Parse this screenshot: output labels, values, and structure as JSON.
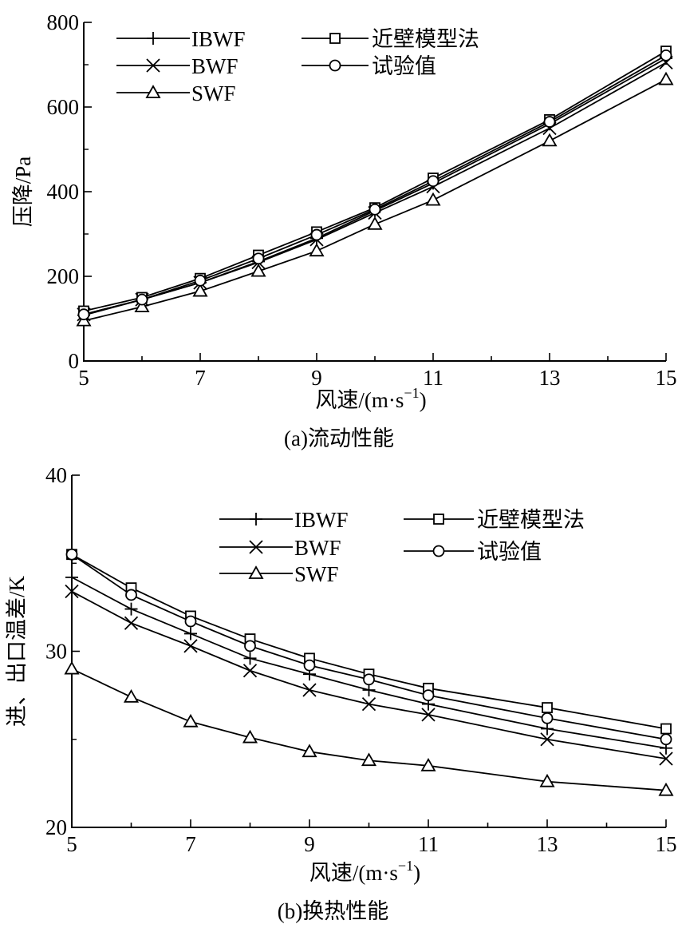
{
  "chart_data": [
    {
      "type": "line",
      "caption": "(a)流动性能",
      "xlabel": "风速/(m·s",
      "xlabel_sup": "−1",
      "xlabel_close": ")",
      "ylabel": "压降/Pa",
      "xlim": [
        5,
        15
      ],
      "ylim": [
        0,
        800
      ],
      "xticks": [
        5,
        7,
        9,
        11,
        13,
        15
      ],
      "xtick_labels": [
        "5",
        "7",
        "9",
        "11",
        "13",
        "15"
      ],
      "yticks": [
        0,
        200,
        400,
        600,
        800
      ],
      "ytick_labels": [
        "0",
        "200",
        "400",
        "600",
        "800"
      ],
      "grid": false,
      "legend_position": "top-left",
      "x": [
        5,
        6,
        7,
        8,
        9,
        10,
        11,
        13,
        15
      ],
      "series": [
        {
          "name": "IBWF",
          "marker": "plus",
          "values": [
            108,
            145,
            185,
            235,
            290,
            355,
            420,
            560,
            715
          ]
        },
        {
          "name": "BWF",
          "marker": "x",
          "values": [
            110,
            145,
            185,
            233,
            287,
            350,
            412,
            550,
            705
          ]
        },
        {
          "name": "SWF",
          "marker": "triangle",
          "values": [
            95,
            128,
            165,
            212,
            260,
            323,
            380,
            520,
            665
          ]
        },
        {
          "name": "近壁模型法",
          "marker": "square",
          "values": [
            118,
            150,
            195,
            250,
            305,
            362,
            432,
            570,
            732
          ]
        },
        {
          "name": "试验值",
          "marker": "circle",
          "values": [
            110,
            145,
            190,
            242,
            298,
            358,
            425,
            565,
            722
          ]
        }
      ]
    },
    {
      "type": "line",
      "caption": "(b)换热性能",
      "xlabel": "风速/(m·s",
      "xlabel_sup": "−1",
      "xlabel_close": ")",
      "ylabel": "进、出口温差/K",
      "xlim": [
        5,
        15
      ],
      "ylim": [
        20,
        40
      ],
      "xticks": [
        5,
        7,
        9,
        11,
        13,
        15
      ],
      "xtick_labels": [
        "5",
        "7",
        "9",
        "11",
        "13",
        "15"
      ],
      "yticks": [
        20,
        30,
        40
      ],
      "ytick_labels": [
        "20",
        "30",
        "40"
      ],
      "grid": false,
      "legend_position": "top-right",
      "x": [
        5,
        6,
        7,
        8,
        9,
        10,
        11,
        13,
        15
      ],
      "series": [
        {
          "name": "IBWF",
          "marker": "plus",
          "values": [
            34.2,
            32.4,
            31.0,
            29.6,
            28.7,
            27.8,
            27.0,
            25.6,
            24.5
          ]
        },
        {
          "name": "BWF",
          "marker": "x",
          "values": [
            33.4,
            31.6,
            30.3,
            28.9,
            27.8,
            27.0,
            26.4,
            25.0,
            23.9
          ]
        },
        {
          "name": "SWF",
          "marker": "triangle",
          "values": [
            29.0,
            27.4,
            26.0,
            25.1,
            24.3,
            23.8,
            23.5,
            22.6,
            22.1
          ]
        },
        {
          "name": "近壁模型法",
          "marker": "square",
          "values": [
            35.5,
            33.6,
            32.0,
            30.7,
            29.6,
            28.7,
            27.9,
            26.8,
            25.6
          ]
        },
        {
          "name": "试验值",
          "marker": "circle",
          "values": [
            35.5,
            33.2,
            31.7,
            30.3,
            29.2,
            28.4,
            27.5,
            26.2,
            25.0
          ]
        }
      ]
    }
  ]
}
